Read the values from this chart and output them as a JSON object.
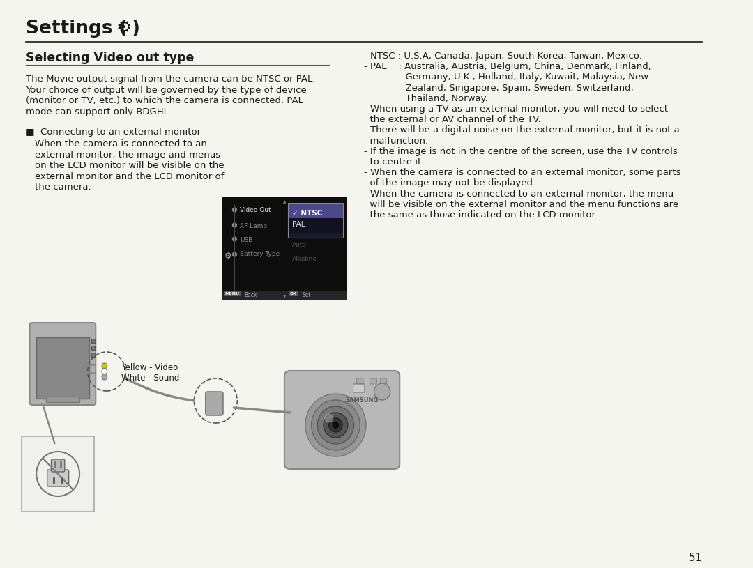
{
  "bg_color": "#f5f5f0",
  "page_bg": "#f5f5f0",
  "title_text": "Settings (",
  "title_gear": "⚙",
  "title_close": " )",
  "subtitle": "Selecting Video out type",
  "page_number": "51",
  "left_body": [
    "The Movie output signal from the camera can be NTSC or PAL.",
    "Your choice of output will be governed by the type of device",
    "(monitor or TV, etc.) to which the camera is connected. PAL",
    "mode can support only BDGHI."
  ],
  "bullet_header": "■  Connecting to an external monitor",
  "bullet_body": [
    "When the camera is connected to an",
    "external monitor, the image and menus",
    "on the LCD monitor will be visible on the",
    "external monitor and the LCD monitor of",
    "the camera."
  ],
  "right_lines": [
    "- NTSC : U.S.A, Canada, Japan, South Korea, Taiwan, Mexico.",
    "- PAL    : Australia, Austria, Belgium, China, Denmark, Finland,",
    "              Germany, U.K., Holland, Italy, Kuwait, Malaysia, New",
    "              Zealand, Singapore, Spain, Sweden, Switzerland,",
    "              Thailand, Norway.",
    "- When using a TV as an external monitor, you will need to select",
    "  the external or AV channel of the TV.",
    "- There will be a digital noise on the external monitor, but it is not a",
    "  malfunction.",
    "- If the image is not in the centre of the screen, use the TV controls",
    "  to centre it.",
    "- When the camera is connected to an external monitor, some parts",
    "  of the image may not be displayed.",
    "- When the camera is connected to an external monitor, the menu",
    "  will be visible on the external monitor and the menu functions are",
    "  the same as those indicated on the LCD monitor."
  ],
  "label_yellow": "Yellow - Video",
  "label_white": "White - Sound",
  "menu_items_left": [
    "Video Out",
    "AF Lamp",
    "USB",
    "Battery Type"
  ],
  "menu_items_right": [
    "✓ NTSC",
    "PAL",
    "Auto",
    "Alkaline"
  ]
}
